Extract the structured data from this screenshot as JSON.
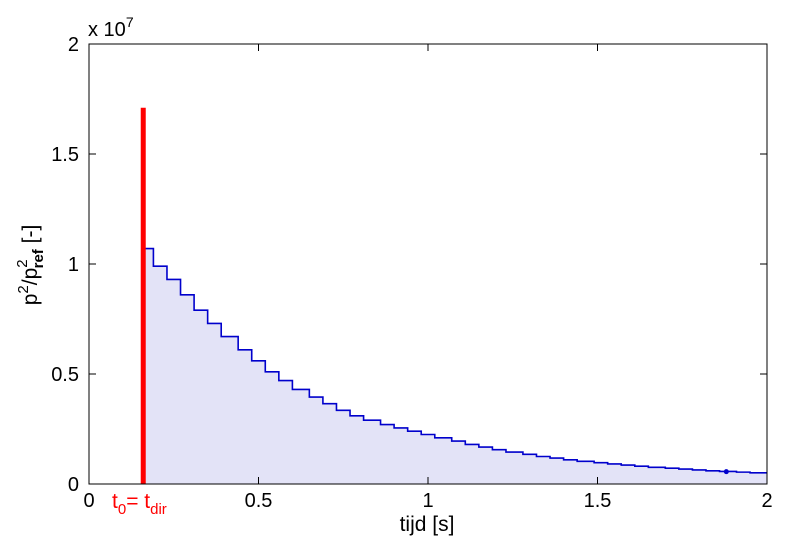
{
  "chart_data": {
    "type": "area",
    "xlabel": "tijd  [s]",
    "ylabel": {
      "base1": "p",
      "sup1": "2",
      "slash": "/p",
      "sup2": "2",
      "sub2": "ref",
      "unit": "  [-]"
    },
    "xlim": [
      0,
      2
    ],
    "ylim": [
      0,
      20000000
    ],
    "y_exponent_label": "x 10",
    "y_exponent": "7",
    "x_ticks": [
      {
        "value": 0,
        "label": "0"
      },
      {
        "value": 0.5,
        "label": "0.5"
      },
      {
        "value": 1,
        "label": "1"
      },
      {
        "value": 1.5,
        "label": "1.5"
      },
      {
        "value": 2,
        "label": "2"
      }
    ],
    "y_ticks": [
      {
        "value": 0,
        "label": "0"
      },
      {
        "value": 5000000,
        "label": "0.5"
      },
      {
        "value": 10000000,
        "label": "1"
      },
      {
        "value": 15000000,
        "label": "1.5"
      },
      {
        "value": 20000000,
        "label": "2"
      }
    ],
    "grid": false,
    "direct_sound": {
      "t": 0.16,
      "value": 17100000,
      "color": "#ff0000",
      "label": {
        "t": "t",
        "sub0": "0",
        "eq": "= t",
        "subdir": "dir"
      }
    },
    "reflections": {
      "color": "#0000cc",
      "fill": "#e3e3f7",
      "steps_t": [
        0.16,
        0.19,
        0.23,
        0.27,
        0.31,
        0.35,
        0.39,
        0.44,
        0.48,
        0.52,
        0.56,
        0.6,
        0.65,
        0.69,
        0.73,
        0.77,
        0.81,
        0.86,
        0.9,
        0.94,
        0.98,
        1.02,
        1.07,
        1.11,
        1.15,
        1.19,
        1.23,
        1.28,
        1.32,
        1.36,
        1.4,
        1.44,
        1.49,
        1.53,
        1.57,
        1.61,
        1.65,
        1.7,
        1.74,
        1.78,
        1.82,
        1.86,
        1.91,
        1.95,
        2.0
      ],
      "values": [
        10700000,
        9900000,
        9300000,
        8600000,
        7900000,
        7300000,
        6700000,
        6100000,
        5600000,
        5100000,
        4700000,
        4300000,
        3950000,
        3650000,
        3350000,
        3100000,
        2900000,
        2700000,
        2550000,
        2400000,
        2250000,
        2100000,
        1950000,
        1800000,
        1680000,
        1560000,
        1450000,
        1350000,
        1250000,
        1180000,
        1100000,
        1030000,
        970000,
        910000,
        860000,
        810000,
        760000,
        720000,
        680000,
        640000,
        600000,
        570000,
        540000,
        510000
      ],
      "end_marker": {
        "t": 1.88,
        "value": 560000
      }
    }
  }
}
